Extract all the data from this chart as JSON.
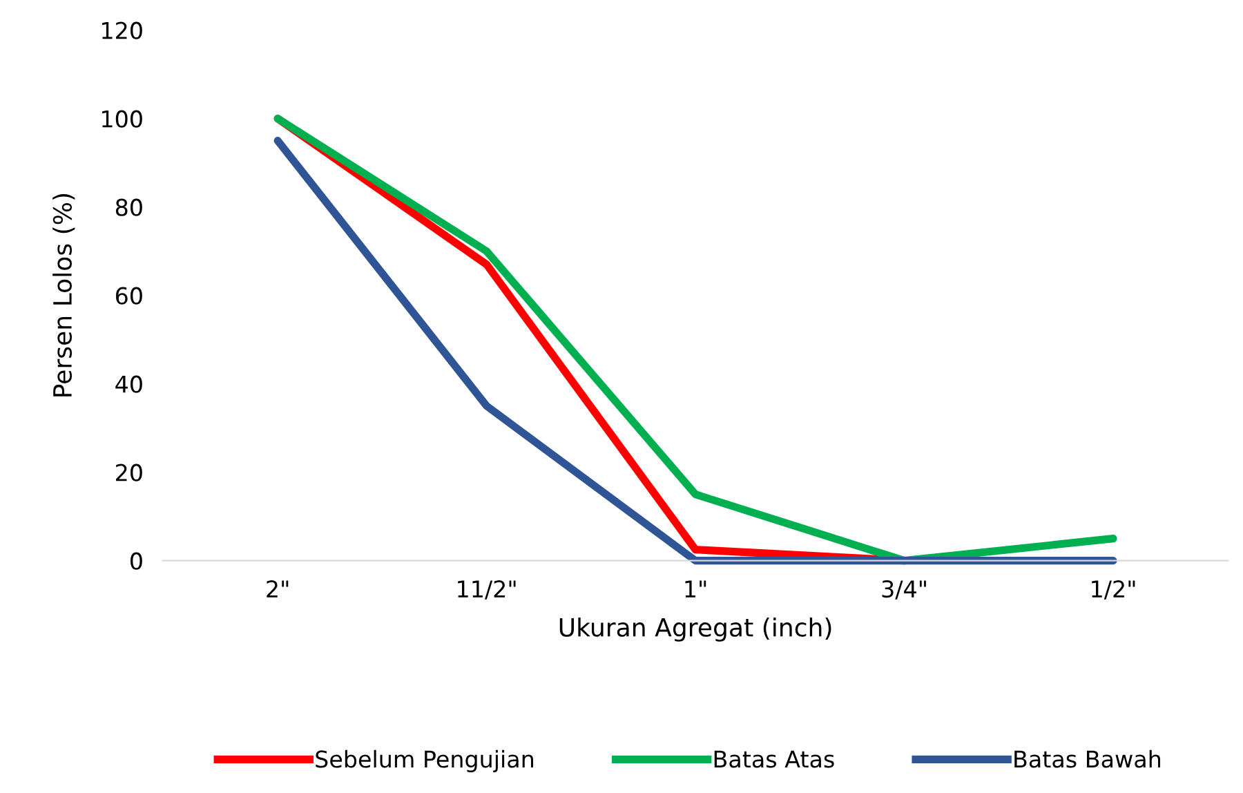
{
  "chart_data": {
    "type": "line",
    "xlabel": "Ukuran Agregat (inch)",
    "ylabel": "Persen Lolos (%)",
    "categories": [
      "2\"",
      "11/2\"",
      "1\"",
      "3/4\"",
      "1/2\""
    ],
    "series": [
      {
        "name": "Sebelum Pengujian",
        "color": "#ff0000",
        "values": [
          100,
          67,
          2.5,
          0,
          null
        ]
      },
      {
        "name": "Batas Atas",
        "color": "#00b050",
        "values": [
          100,
          70,
          15,
          0,
          5
        ]
      },
      {
        "name": "Batas Bawah",
        "color": "#2f5597",
        "values": [
          95,
          35,
          0,
          0,
          0
        ]
      }
    ],
    "ylim": [
      0,
      120
    ],
    "yticks": [
      0,
      20,
      40,
      60,
      80,
      100,
      120
    ],
    "grid": false,
    "legend": "bottom",
    "marker": "none",
    "line_style": "solid"
  }
}
